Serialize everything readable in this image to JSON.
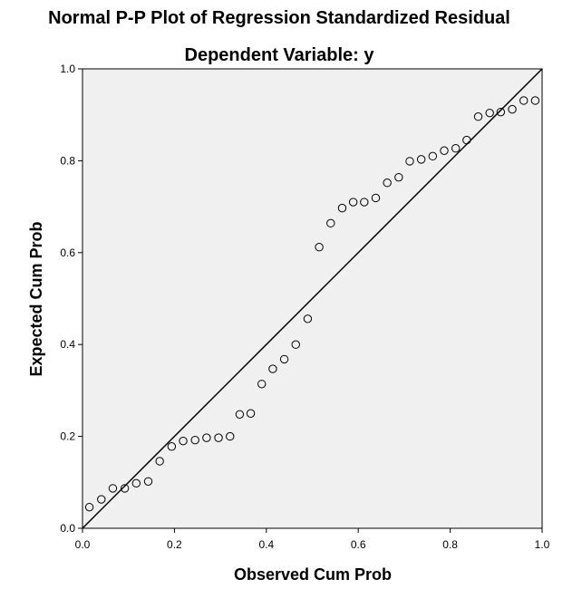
{
  "chart_data": {
    "type": "scatter",
    "title": "Normal P-P Plot of Regression Standardized Residual",
    "subtitle": "Dependent Variable: y",
    "xlabel": "Observed Cum Prob",
    "ylabel": "Expected Cum Prob",
    "xlim": [
      0.0,
      1.0
    ],
    "ylim": [
      0.0,
      1.0
    ],
    "xticks": [
      "0.0",
      "0.2",
      "0.4",
      "0.6",
      "0.8",
      "1.0"
    ],
    "yticks": [
      "0.0",
      "0.2",
      "0.4",
      "0.6",
      "0.8",
      "1.0"
    ],
    "reference_line": [
      [
        0.0,
        0.0
      ],
      [
        1.0,
        1.0
      ]
    ],
    "grid": false,
    "plot_background": "#f0f0f0",
    "points": [
      [
        0.015,
        0.046
      ],
      [
        0.041,
        0.063
      ],
      [
        0.066,
        0.087
      ],
      [
        0.092,
        0.087
      ],
      [
        0.117,
        0.098
      ],
      [
        0.143,
        0.102
      ],
      [
        0.168,
        0.146
      ],
      [
        0.194,
        0.178
      ],
      [
        0.219,
        0.19
      ],
      [
        0.245,
        0.192
      ],
      [
        0.27,
        0.197
      ],
      [
        0.296,
        0.197
      ],
      [
        0.321,
        0.2
      ],
      [
        0.342,
        0.248
      ],
      [
        0.366,
        0.25
      ],
      [
        0.39,
        0.314
      ],
      [
        0.414,
        0.347
      ],
      [
        0.439,
        0.368
      ],
      [
        0.464,
        0.4
      ],
      [
        0.49,
        0.456
      ],
      [
        0.515,
        0.612
      ],
      [
        0.54,
        0.664
      ],
      [
        0.565,
        0.697
      ],
      [
        0.589,
        0.71
      ],
      [
        0.613,
        0.71
      ],
      [
        0.638,
        0.719
      ],
      [
        0.663,
        0.752
      ],
      [
        0.688,
        0.764
      ],
      [
        0.712,
        0.799
      ],
      [
        0.737,
        0.803
      ],
      [
        0.762,
        0.81
      ],
      [
        0.787,
        0.822
      ],
      [
        0.812,
        0.827
      ],
      [
        0.836,
        0.845
      ],
      [
        0.861,
        0.896
      ],
      [
        0.886,
        0.904
      ],
      [
        0.91,
        0.906
      ],
      [
        0.935,
        0.912
      ],
      [
        0.96,
        0.931
      ],
      [
        0.985,
        0.931
      ]
    ]
  }
}
